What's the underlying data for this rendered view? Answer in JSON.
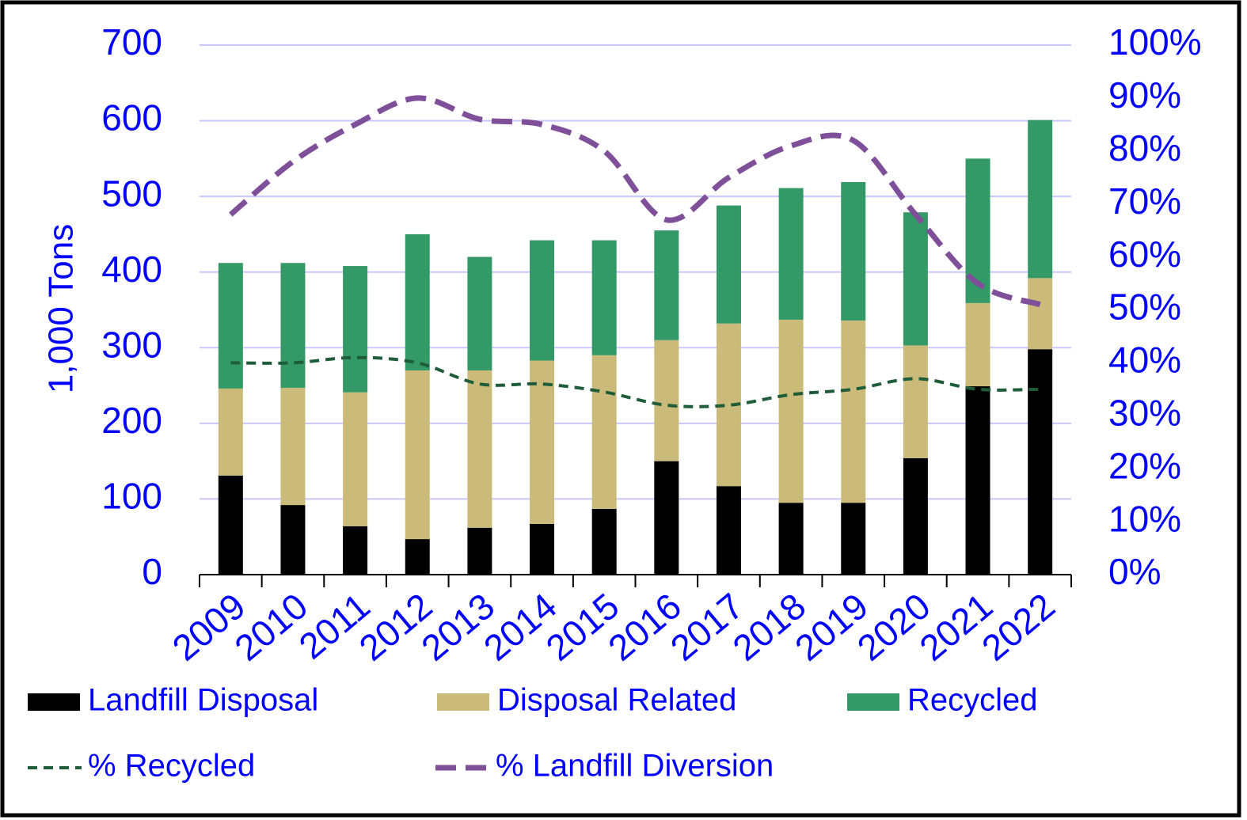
{
  "chart_data": {
    "type": "bar",
    "y_label": "1,000 Tons",
    "categories": [
      "2009",
      "2010",
      "2011",
      "2012",
      "2013",
      "2014",
      "2015",
      "2016",
      "2017",
      "2018",
      "2019",
      "2020",
      "2021",
      "2022"
    ],
    "series": [
      {
        "name": "Landfill Disposal",
        "color": "#000000",
        "values": [
          131,
          92,
          64,
          47,
          62,
          67,
          87,
          150,
          117,
          95,
          95,
          154,
          249,
          298
        ]
      },
      {
        "name": "Disposal Related",
        "color": "#cbbb7a",
        "values": [
          115,
          155,
          177,
          223,
          208,
          216,
          203,
          160,
          215,
          242,
          241,
          149,
          110,
          94
        ]
      },
      {
        "name": "Recycled",
        "color": "#339966",
        "values": [
          166,
          165,
          167,
          180,
          150,
          159,
          152,
          145,
          156,
          174,
          183,
          176,
          191,
          209
        ]
      },
      {
        "name": "% Recycled",
        "type": "line",
        "axis": "y2",
        "color": "#1e5c3a",
        "values": [
          40,
          40,
          41,
          40,
          36,
          36,
          34.5,
          32,
          32,
          34,
          35,
          37,
          35,
          35
        ]
      },
      {
        "name": "% Landfill Diversion",
        "type": "line",
        "axis": "y2",
        "color": "#7f4f9a",
        "values": [
          68,
          78,
          85,
          90,
          86,
          85,
          80,
          67,
          75,
          81,
          82,
          68,
          55,
          51
        ]
      }
    ],
    "stacked": true,
    "ylim": [
      0,
      700
    ],
    "yticks": [
      0,
      100,
      200,
      300,
      400,
      500,
      600,
      700
    ],
    "y2lim": [
      0,
      100
    ],
    "y2ticks": [
      {
        "value": 0,
        "label": "0%"
      },
      {
        "value": 10,
        "label": "10%"
      },
      {
        "value": 20,
        "label": "20%"
      },
      {
        "value": 30,
        "label": "30%"
      },
      {
        "value": 40,
        "label": "40%"
      },
      {
        "value": 50,
        "label": "50%"
      },
      {
        "value": 60,
        "label": "60%"
      },
      {
        "value": 70,
        "label": "70%"
      },
      {
        "value": 80,
        "label": "80%"
      },
      {
        "value": 90,
        "label": "90%"
      },
      {
        "value": 100,
        "label": "100%"
      }
    ],
    "grid": true,
    "legend": "bottom"
  }
}
